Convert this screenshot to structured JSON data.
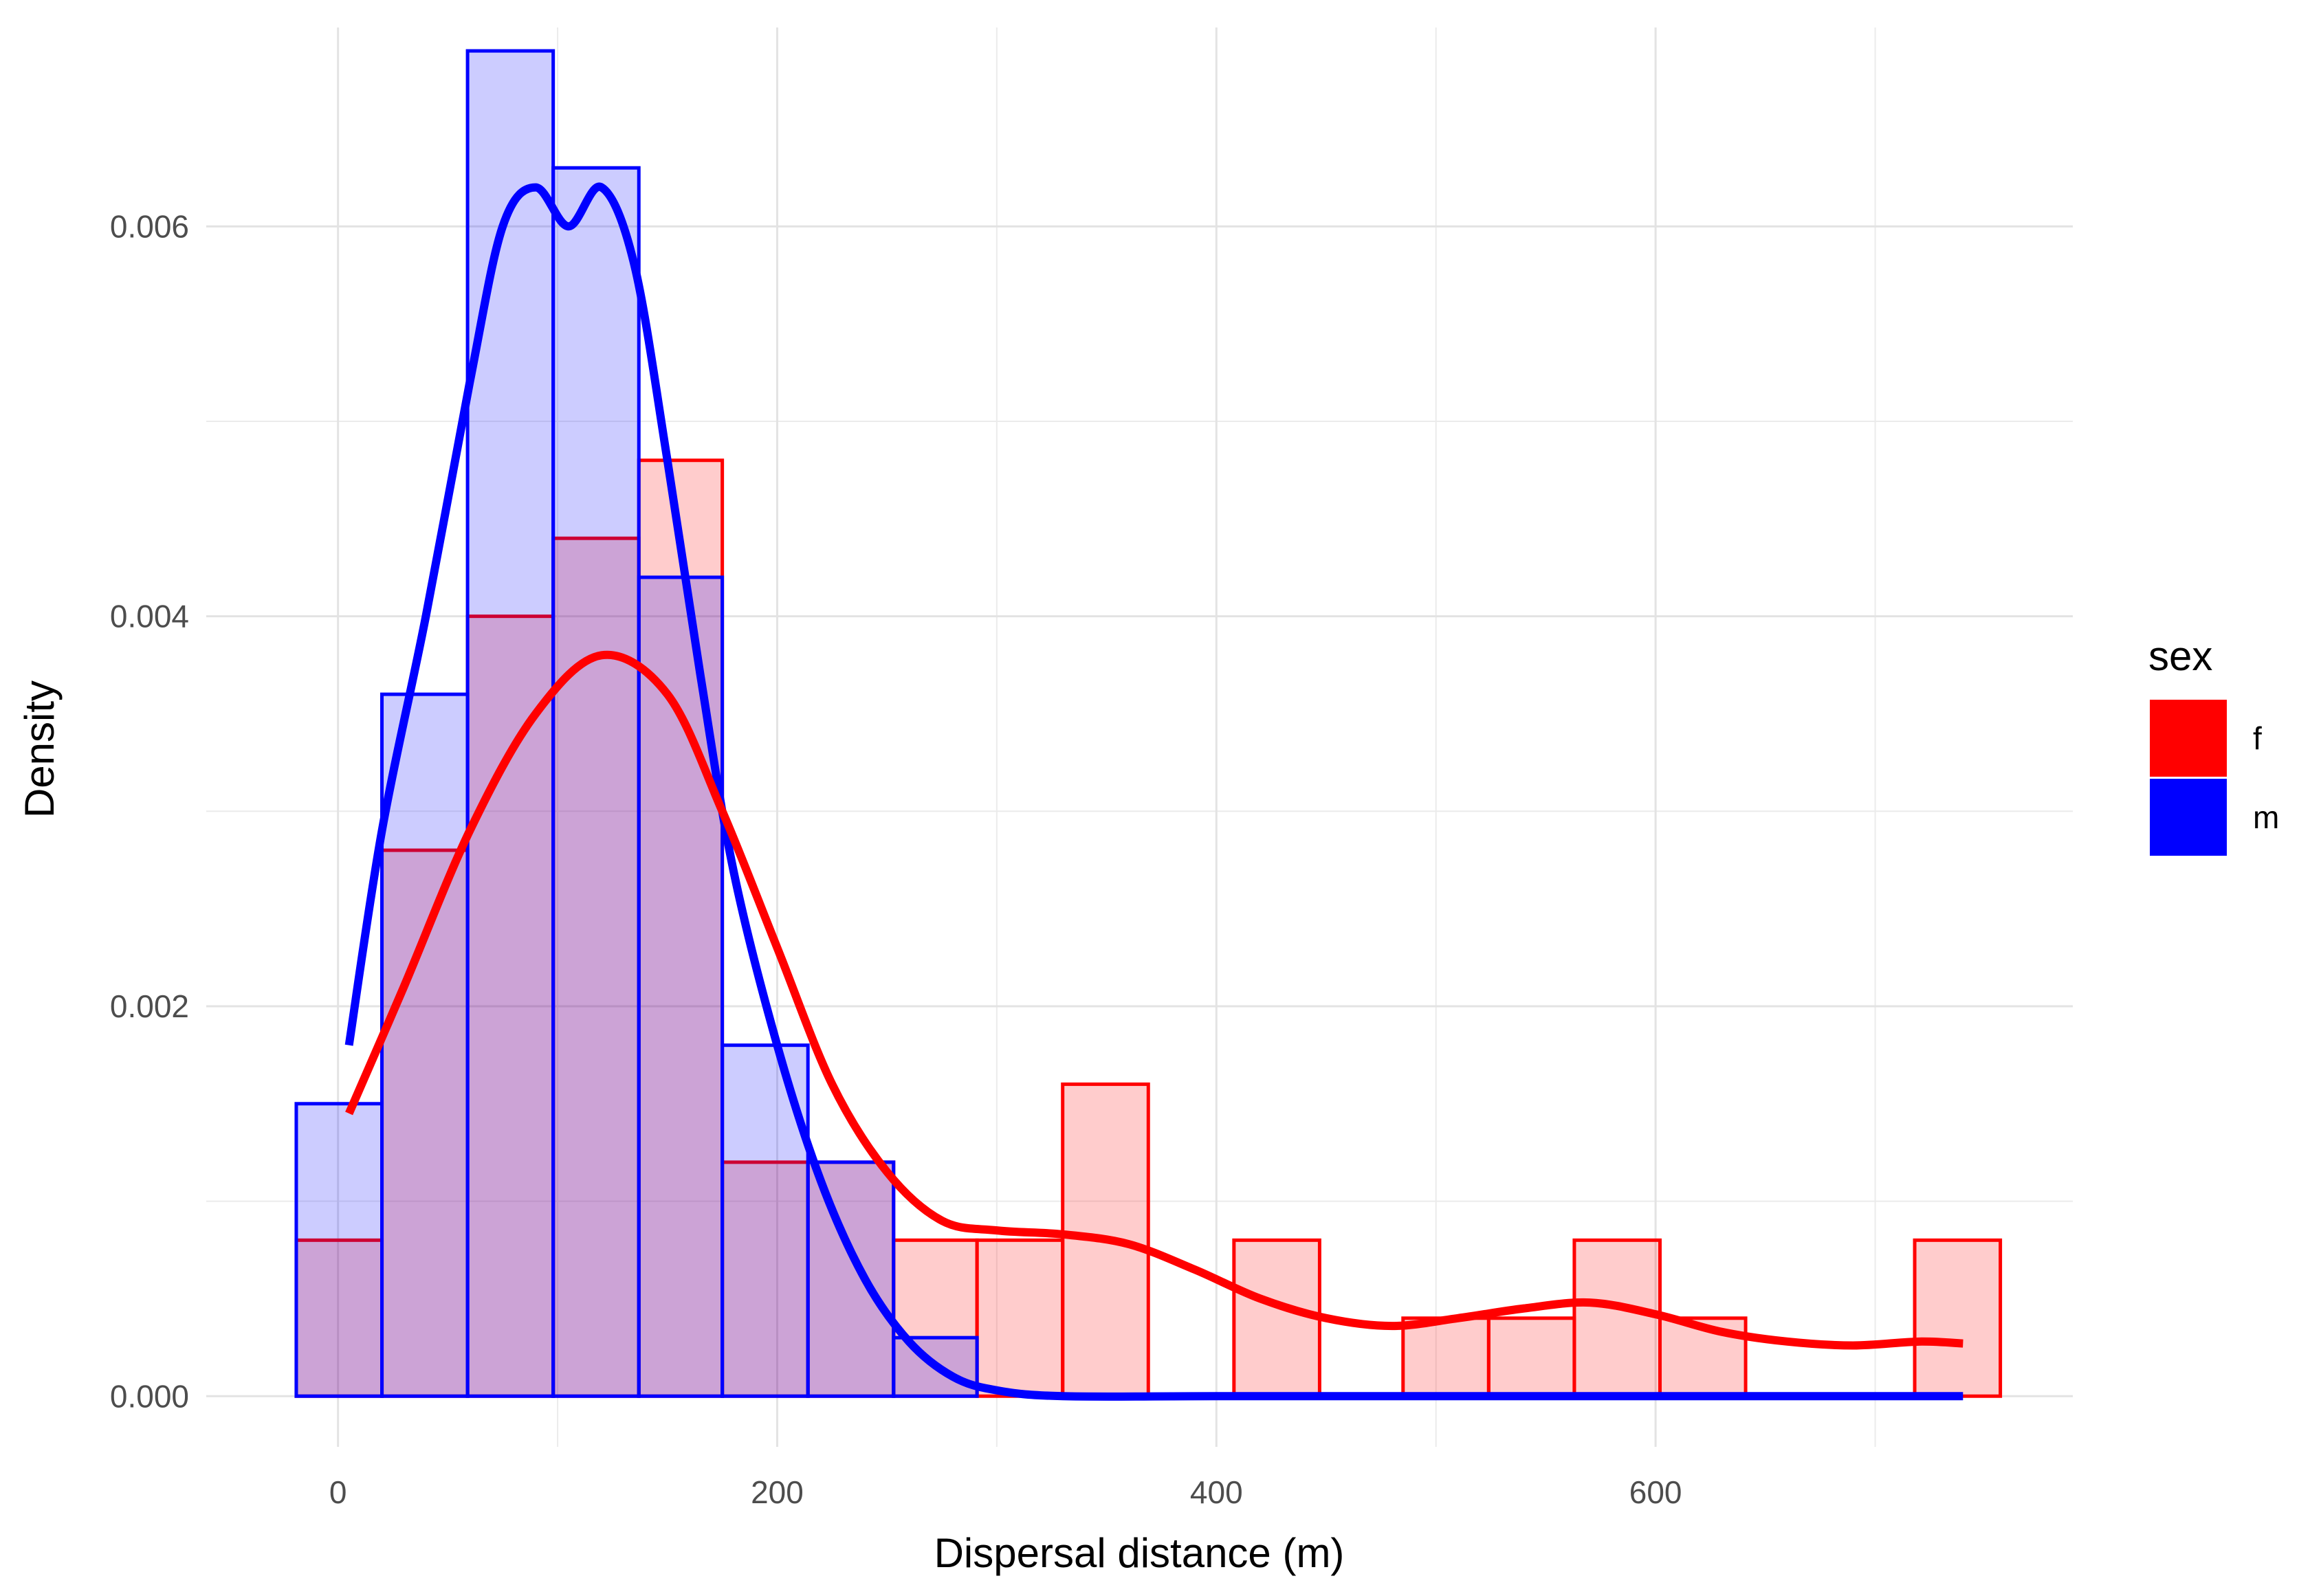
{
  "chart_data": {
    "type": "histogram",
    "xlabel": "Dispersal distance (m)",
    "ylabel": "Density",
    "xlim": [
      -60,
      790
    ],
    "ylim": [
      -0.00026,
      0.00702
    ],
    "x_ticks": [
      0,
      200,
      400,
      600
    ],
    "x_tick_labels": [
      "0",
      "200",
      "400",
      "600"
    ],
    "y_ticks": [
      0,
      0.002,
      0.004,
      0.006
    ],
    "y_tick_labels": [
      "0.000",
      "0.002",
      "0.004",
      "0.006"
    ],
    "grid": true,
    "legend": {
      "title": "sex",
      "position": "right",
      "entries": [
        {
          "label": "f",
          "color": "#ff0000"
        },
        {
          "label": "m",
          "color": "#0000ff"
        }
      ]
    },
    "bin_edges": [
      -19,
      20,
      59,
      98,
      137,
      175,
      214,
      253,
      291,
      330,
      369,
      408,
      447,
      485,
      524,
      563,
      602,
      641,
      679,
      718,
      757
    ],
    "series": [
      {
        "name": "f",
        "color": "#ff0000",
        "fill": "#ff0000",
        "fill_opacity": 0.2,
        "densities": [
          0.0008,
          0.0028,
          0.004,
          0.0044,
          0.0048,
          0.0012,
          0.0012,
          0.0008,
          0.0008,
          0.0016,
          0,
          0.0008,
          0,
          0.0004,
          0.0004,
          0.0008,
          0.0004,
          0,
          0,
          0.0008
        ],
        "density_curve": {
          "x": [
            5,
            30,
            60,
            90,
            120,
            150,
            175,
            200,
            225,
            250,
            275,
            300,
            330,
            360,
            390,
            420,
            450,
            480,
            510,
            540,
            570,
            600,
            630,
            660,
            690,
            720,
            740
          ],
          "y": [
            0.00145,
            0.0021,
            0.0029,
            0.0035,
            0.0038,
            0.0036,
            0.003,
            0.0023,
            0.0016,
            0.00115,
            0.0009,
            0.00085,
            0.00083,
            0.00078,
            0.00065,
            0.0005,
            0.0004,
            0.00036,
            0.0004,
            0.00045,
            0.00048,
            0.00042,
            0.00033,
            0.00028,
            0.00026,
            0.00028,
            0.00027
          ]
        }
      },
      {
        "name": "m",
        "color": "#0000ff",
        "fill": "#0000ff",
        "fill_opacity": 0.2,
        "densities": [
          0.0015,
          0.0036,
          0.0069,
          0.0063,
          0.0042,
          0.0018,
          0.0012,
          0.0003,
          0,
          0,
          0,
          0,
          0,
          0,
          0,
          0,
          0,
          0,
          0,
          0
        ],
        "density_curve": {
          "x": [
            5,
            20,
            40,
            60,
            75,
            90,
            105,
            120,
            135,
            150,
            165,
            180,
            200,
            220,
            240,
            260,
            280,
            300,
            330,
            400,
            500,
            600,
            740
          ],
          "y": [
            0.0018,
            0.0029,
            0.004,
            0.0052,
            0.006,
            0.0062,
            0.006,
            0.0062,
            0.0058,
            0.0048,
            0.0037,
            0.0027,
            0.0018,
            0.0011,
            0.0006,
            0.00028,
            0.0001,
            3e-05,
            0,
            0,
            0,
            0,
            0
          ]
        }
      }
    ]
  }
}
